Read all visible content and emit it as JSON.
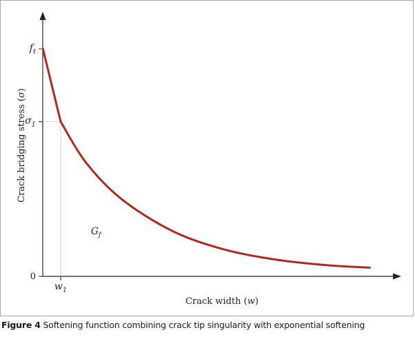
{
  "chart_data": {
    "type": "line",
    "xlabel_main": "Crack width",
    "xlabel_sym": "w",
    "ylabel_main": "Crack bridging stress",
    "ylabel_sym": "σ",
    "y_ticks": {
      "ft": {
        "base": "f",
        "sub": "t"
      },
      "s1": {
        "base": "σ",
        "sub": "1"
      },
      "zero": "0"
    },
    "x_ticks": {
      "w1": {
        "base": "w",
        "sub": "1"
      }
    },
    "area_label": {
      "base": "G",
      "sub": "f"
    },
    "xlim": [
      0,
      6.6
    ],
    "ylim": [
      0,
      1.0
    ],
    "values": {
      "ft": 1.0,
      "sigma1": 0.68,
      "w1": 0.3
    },
    "series": [
      {
        "color": "#b0271e",
        "x": [
          -0.05,
          0.3,
          0.8,
          1.5,
          2.5,
          3.5,
          4.5,
          5.5,
          6.4
        ],
        "y": [
          1.0,
          0.68,
          0.5,
          0.34,
          0.2,
          0.12,
          0.075,
          0.05,
          0.038
        ]
      }
    ]
  },
  "caption": {
    "label": "Figure 4",
    "text": " Softening function combining crack tip singularity with exponential softening"
  }
}
